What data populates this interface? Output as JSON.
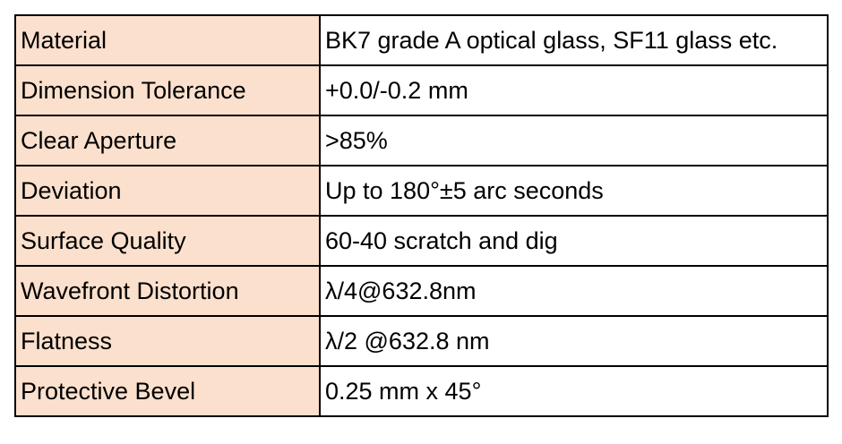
{
  "table": {
    "rows": [
      [
        "Material",
        "BK7 grade A optical glass, SF11 glass etc."
      ],
      [
        "Dimension Tolerance",
        "+0.0/-0.2 mm"
      ],
      [
        "Clear Aperture",
        ">85%"
      ],
      [
        "Deviation",
        "Up to 180°±5 arc seconds"
      ],
      [
        "Surface Quality",
        "60-40 scratch and dig"
      ],
      [
        "Wavefront Distortion",
        "λ/4@632.8nm"
      ],
      [
        "Flatness",
        "λ/2 @632.8 nm"
      ],
      [
        "Protective Bevel",
        "0.25 mm x 45°"
      ]
    ]
  }
}
